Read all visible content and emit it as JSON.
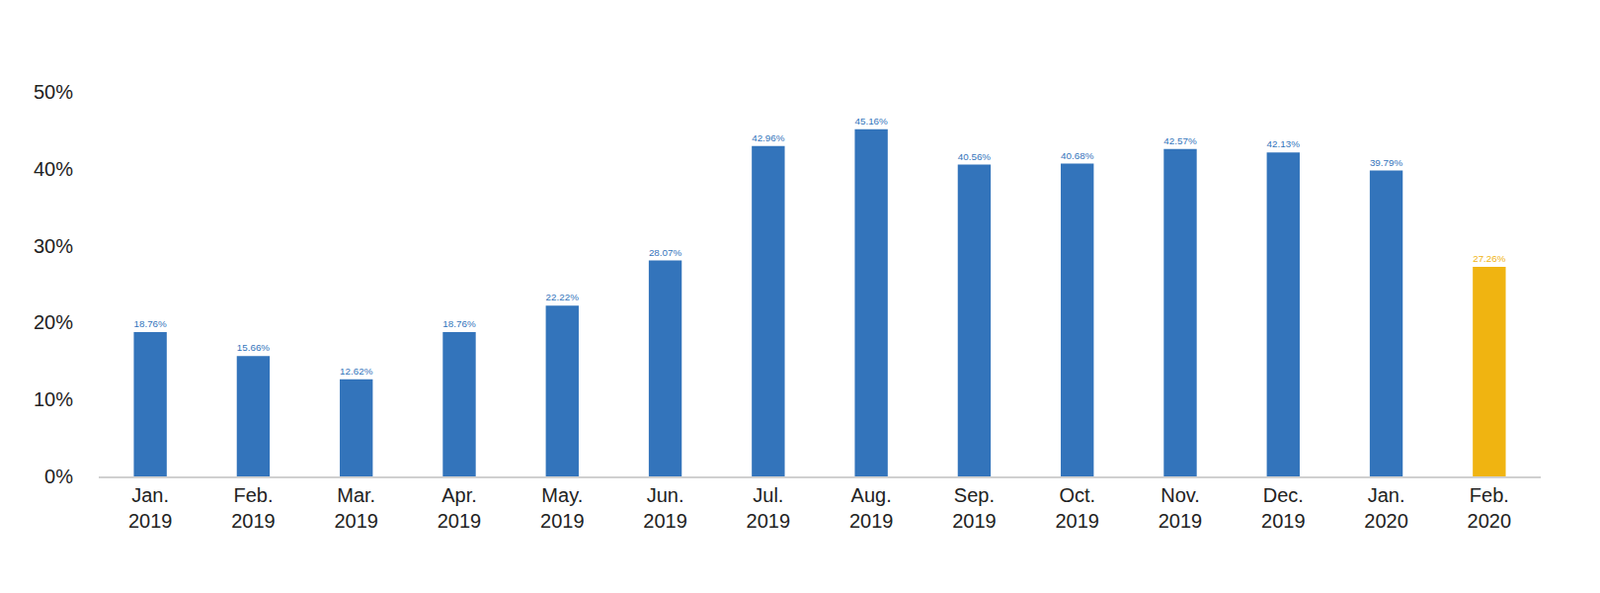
{
  "chart_data": {
    "type": "bar",
    "categories": [
      "Jan. 2019",
      "Feb. 2019",
      "Mar. 2019",
      "Apr. 2019",
      "May. 2019",
      "Jun. 2019",
      "Jul. 2019",
      "Aug. 2019",
      "Sep. 2019",
      "Oct. 2019",
      "Nov. 2019",
      "Dec. 2019",
      "Jan. 2020",
      "Feb. 2020"
    ],
    "values": [
      18.76,
      15.66,
      12.62,
      18.76,
      22.22,
      28.07,
      42.96,
      45.16,
      40.56,
      40.68,
      42.57,
      42.13,
      39.79,
      27.26
    ],
    "value_labels": [
      "18.76%",
      "15.66%",
      "12.62%",
      "18.76%",
      "22.22%",
      "28.07%",
      "42.96%",
      "45.16%",
      "40.56%",
      "40.68%",
      "42.57%",
      "42.13%",
      "39.79%",
      "27.26%"
    ],
    "colors": [
      "#3374bb",
      "#3374bb",
      "#3374bb",
      "#3374bb",
      "#3374bb",
      "#3374bb",
      "#3374bb",
      "#3374bb",
      "#3374bb",
      "#3374bb",
      "#3374bb",
      "#3374bb",
      "#3374bb",
      "#f0b411"
    ],
    "ylim": [
      0,
      50
    ],
    "yticks": [
      {
        "value": 0,
        "label": "0%"
      },
      {
        "value": 10,
        "label": "10%"
      },
      {
        "value": 20,
        "label": "20%"
      },
      {
        "value": 30,
        "label": "30%"
      },
      {
        "value": 40,
        "label": "40%"
      },
      {
        "value": 50,
        "label": "50%"
      }
    ],
    "grid": false,
    "data_labels": true
  }
}
